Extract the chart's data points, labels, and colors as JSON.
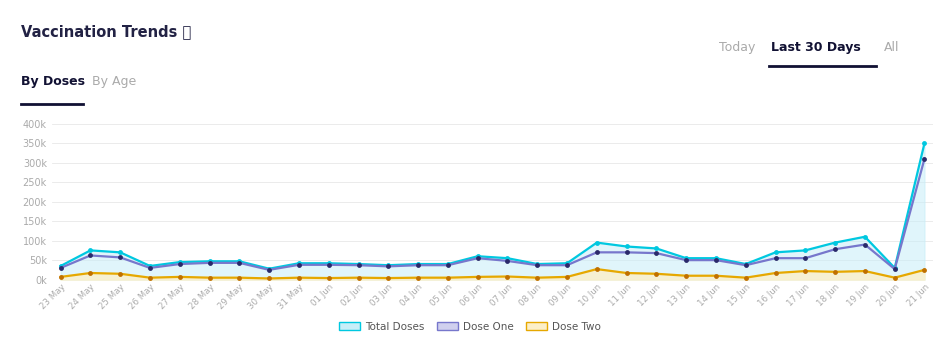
{
  "title": "Vaccination Trends ⓘ",
  "tab_active": "By Doses",
  "tab_inactive": "By Age",
  "period_options": [
    "Today",
    "Last 30 Days",
    "All"
  ],
  "dates": [
    "23 May",
    "24 May",
    "25 May",
    "26 May",
    "27 May",
    "28 May",
    "29 May",
    "30 May",
    "31 May",
    "01 Jun",
    "02 Jun",
    "03 Jun",
    "04 Jun",
    "05 Jun",
    "06 Jun",
    "07 Jun",
    "08 Jun",
    "09 Jun",
    "10 Jun",
    "11 Jun",
    "12 Jun",
    "13 Jun",
    "14 Jun",
    "15 Jun",
    "16 Jun",
    "17 Jun",
    "18 Jun",
    "19 Jun",
    "20 Jun",
    "21 Jun"
  ],
  "total_doses": [
    35000,
    75000,
    70000,
    35000,
    45000,
    47000,
    47000,
    28000,
    42000,
    42000,
    40000,
    37000,
    40000,
    40000,
    60000,
    55000,
    40000,
    42000,
    95000,
    85000,
    80000,
    55000,
    55000,
    40000,
    70000,
    75000,
    95000,
    110000,
    30000,
    350000
  ],
  "dose_one": [
    30000,
    62000,
    57000,
    30000,
    40000,
    43000,
    43000,
    25000,
    38000,
    38000,
    37000,
    34000,
    37000,
    37000,
    55000,
    48000,
    37000,
    37000,
    70000,
    70000,
    68000,
    50000,
    50000,
    37000,
    55000,
    55000,
    78000,
    90000,
    27000,
    310000
  ],
  "dose_two": [
    7000,
    17000,
    15000,
    5000,
    7000,
    5000,
    5000,
    3000,
    5000,
    4000,
    5000,
    4000,
    5000,
    5000,
    7000,
    8000,
    5000,
    7000,
    27000,
    17000,
    15000,
    10000,
    10000,
    5000,
    17000,
    22000,
    20000,
    22000,
    5000,
    25000
  ],
  "ylim": [
    0,
    420000
  ],
  "yticks": [
    0,
    50000,
    100000,
    150000,
    200000,
    250000,
    300000,
    350000,
    400000
  ],
  "ytick_labels": [
    "0k",
    "50k",
    "100k",
    "150k",
    "200k",
    "250k",
    "300k",
    "350k",
    "400k"
  ],
  "color_total": "#00c8e0",
  "color_dose_one": "#7777cc",
  "color_dose_two": "#e6a800",
  "fill_total_color": "#c8eef8",
  "fill_dose_two_color": "#fcefc8",
  "marker_dose_one": "#2a2a6a",
  "marker_dose_two": "#c07000",
  "bg_color": "#ffffff",
  "title_color": "#222244",
  "inactive_color": "#aaaaaa",
  "active_color": "#111133",
  "legend_labels": [
    "Total Doses",
    "Dose One",
    "Dose Two"
  ],
  "marker_size": 3.5,
  "line_width": 1.6
}
